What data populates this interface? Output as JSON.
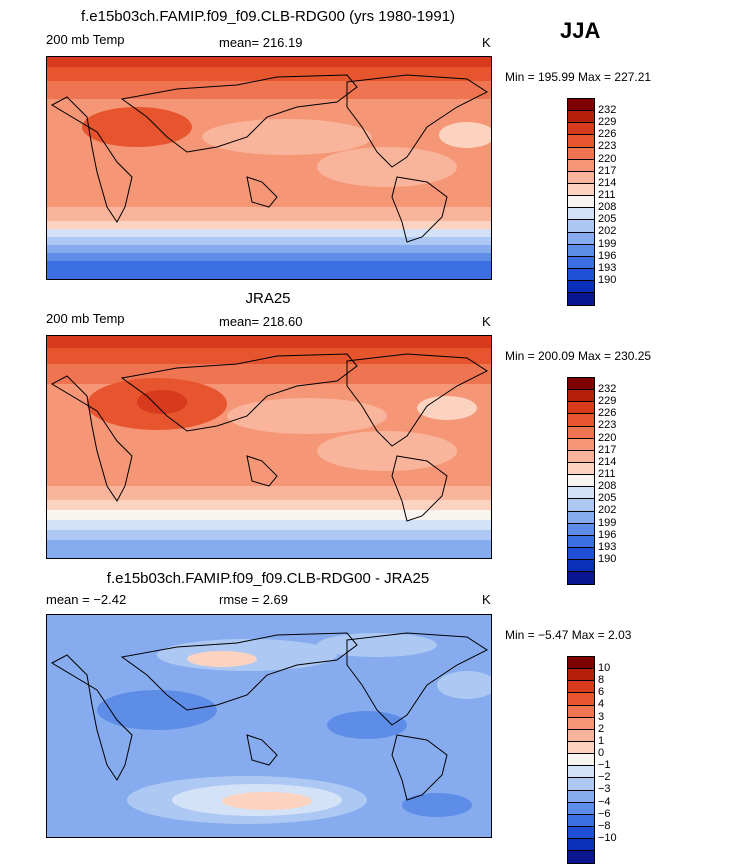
{
  "season": "JJA",
  "panels": [
    {
      "title": "f.e15b03ch.FAMIP.f09_f09.CLB-RDG00 (yrs 1980-1991)",
      "left_label": "200 mb Temp",
      "center_label": "mean=  216.19",
      "units": "K",
      "minmax": "Min =  195.99  Max =  227.21",
      "colorbar": {
        "colors": [
          "#7f0000",
          "#b41e0a",
          "#d73a1c",
          "#e6552e",
          "#ef7552",
          "#f59676",
          "#f9b59c",
          "#fcd3c1",
          "#f8f4f0",
          "#d3e2f7",
          "#adc9f3",
          "#86acef",
          "#5e8de8",
          "#3b6ee0",
          "#1f4fd4",
          "#0a2fb8",
          "#0a1590"
        ],
        "labels": [
          "232",
          "229",
          "226",
          "223",
          "220",
          "217",
          "214",
          "211",
          "208",
          "205",
          "202",
          "199",
          "196",
          "193",
          "190"
        ]
      }
    },
    {
      "title": "JRA25",
      "left_label": "200 mb Temp",
      "center_label": "mean=  218.60",
      "units": "K",
      "minmax": "Min =  200.09  Max =  230.25",
      "colorbar": {
        "colors": [
          "#7f0000",
          "#b41e0a",
          "#d73a1c",
          "#e6552e",
          "#ef7552",
          "#f59676",
          "#f9b59c",
          "#fcd3c1",
          "#f8f4f0",
          "#d3e2f7",
          "#adc9f3",
          "#86acef",
          "#5e8de8",
          "#3b6ee0",
          "#1f4fd4",
          "#0a2fb8",
          "#0a1590"
        ],
        "labels": [
          "232",
          "229",
          "226",
          "223",
          "220",
          "217",
          "214",
          "211",
          "208",
          "205",
          "202",
          "199",
          "196",
          "193",
          "190"
        ]
      }
    },
    {
      "title": "f.e15b03ch.FAMIP.f09_f09.CLB-RDG00 - JRA25",
      "left_label": "mean =   −2.42",
      "center_label": "rmse =     2.69",
      "units": "K",
      "minmax": "Min =   −5.47  Max =     2.03",
      "colorbar": {
        "colors": [
          "#7f0000",
          "#b41e0a",
          "#d73a1c",
          "#e6552e",
          "#ef7552",
          "#f59676",
          "#f9b59c",
          "#fcd3c1",
          "#f8f4f0",
          "#d3e2f7",
          "#adc9f3",
          "#86acef",
          "#5e8de8",
          "#3b6ee0",
          "#1f4fd4",
          "#0a2fb8",
          "#0a1590"
        ],
        "labels": [
          "10",
          "8",
          "6",
          "4",
          "3",
          "2",
          "1",
          "0",
          "−1",
          "−2",
          "−3",
          "−4",
          "−6",
          "−8",
          "−10"
        ]
      }
    }
  ]
}
